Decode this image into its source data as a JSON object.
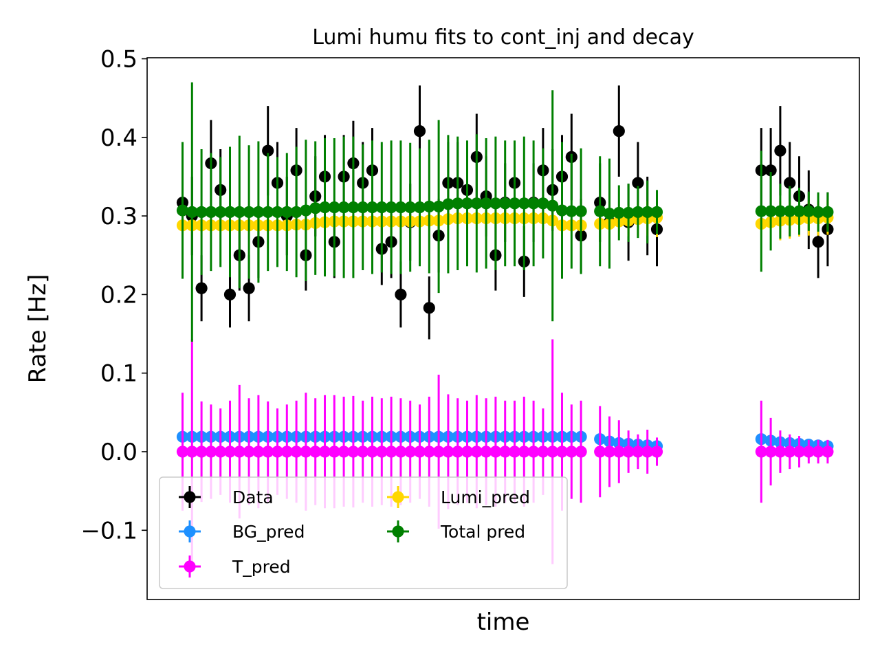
{
  "chart_data": {
    "type": "scatter",
    "title": "Lumi humu fits to cont_inj and decay",
    "xlabel": "time",
    "ylabel": "Rate [Hz]",
    "ylim": [
      -0.19,
      0.5
    ],
    "y_ticks": [
      0.5,
      0.4,
      0.3,
      0.2,
      0.1,
      0.0,
      -0.1
    ],
    "y_tick_labels": [
      "0.5",
      "0.4",
      "0.3",
      "0.2",
      "0.1",
      "0.0",
      "−0.1"
    ],
    "x_ticks_shown": false,
    "grid": false,
    "legend": {
      "placement": "lower-left",
      "columns": 2,
      "entries": [
        "Data",
        "BG_pred",
        "T_pred",
        "Lumi_pred",
        "Total pred"
      ]
    },
    "x": [
      1,
      2,
      3,
      4,
      5,
      6,
      7,
      8,
      9,
      10,
      11,
      12,
      13,
      14,
      15,
      16,
      17,
      18,
      19,
      20,
      21,
      22,
      23,
      24,
      25,
      26,
      27,
      28,
      29,
      30,
      31,
      32,
      33,
      34,
      35,
      36,
      37,
      38,
      39,
      40,
      41,
      42,
      43,
      44,
      45,
      46,
      47,
      48,
      49,
      50,
      51,
      52,
      53,
      54,
      55,
      56,
      57,
      58,
      59,
      60,
      61,
      62,
      63,
      64,
      65,
      66,
      67,
      68,
      69
    ],
    "series": [
      {
        "name": "Data",
        "color": "#000000",
        "values": [
          0.317,
          0.3,
          0.208,
          0.367,
          0.333,
          0.2,
          0.25,
          0.208,
          0.267,
          0.383,
          0.342,
          0.3,
          0.358,
          0.25,
          0.325,
          0.35,
          0.267,
          0.35,
          0.367,
          0.342,
          0.358,
          0.258,
          0.267,
          0.2,
          0.292,
          0.408,
          0.183,
          0.275,
          0.342,
          0.342,
          0.333,
          0.375,
          0.325,
          0.25,
          0.317,
          0.342,
          0.242,
          0.317,
          0.358,
          0.333,
          0.35,
          0.375,
          0.275,
          null,
          0.317,
          0.292,
          0.408,
          0.292,
          0.342,
          0.3,
          0.283,
          null,
          null,
          null,
          null,
          null,
          null,
          null,
          null,
          null,
          null,
          0.358,
          0.358,
          0.383,
          0.342,
          0.325,
          0.308,
          0.267,
          0.283
        ],
        "errors": [
          0.05,
          0.05,
          0.042,
          0.055,
          0.052,
          0.042,
          0.045,
          0.042,
          0.046,
          0.057,
          0.052,
          0.05,
          0.054,
          0.045,
          0.051,
          0.053,
          0.046,
          0.053,
          0.054,
          0.052,
          0.054,
          0.046,
          0.046,
          0.042,
          0.049,
          0.058,
          0.04,
          0.047,
          0.052,
          0.052,
          0.052,
          0.055,
          0.051,
          0.045,
          0.05,
          0.052,
          0.045,
          0.05,
          0.054,
          0.052,
          0.053,
          0.055,
          0.047,
          null,
          0.05,
          0.049,
          0.058,
          0.049,
          0.052,
          0.05,
          0.047,
          null,
          null,
          null,
          null,
          null,
          null,
          null,
          null,
          null,
          null,
          0.054,
          0.054,
          0.057,
          0.052,
          0.051,
          0.05,
          0.046,
          0.047
        ]
      },
      {
        "name": "BG_pred",
        "color": "#1e90ff",
        "values": [
          0.019,
          0.019,
          0.019,
          0.019,
          0.019,
          0.019,
          0.019,
          0.019,
          0.019,
          0.019,
          0.019,
          0.019,
          0.019,
          0.019,
          0.019,
          0.019,
          0.019,
          0.019,
          0.019,
          0.019,
          0.019,
          0.019,
          0.019,
          0.019,
          0.019,
          0.019,
          0.019,
          0.019,
          0.019,
          0.019,
          0.019,
          0.019,
          0.019,
          0.019,
          0.019,
          0.019,
          0.019,
          0.019,
          0.019,
          0.019,
          0.019,
          0.019,
          0.019,
          null,
          0.016,
          0.013,
          0.011,
          0.01,
          0.009,
          0.008,
          0.007,
          null,
          null,
          null,
          null,
          null,
          null,
          null,
          null,
          null,
          null,
          0.016,
          0.014,
          0.012,
          0.011,
          0.01,
          0.009,
          0.008,
          0.007
        ]
      },
      {
        "name": "T_pred",
        "color": "#ff00ff",
        "values": [
          0.0,
          0.0,
          0.0,
          0.0,
          0.0,
          0.0,
          0.0,
          0.0,
          0.0,
          0.0,
          0.0,
          0.0,
          0.0,
          0.0,
          0.0,
          0.0,
          0.0,
          0.0,
          0.0,
          0.0,
          0.0,
          0.0,
          0.0,
          0.0,
          0.0,
          0.0,
          0.0,
          0.0,
          0.0,
          0.0,
          0.0,
          0.0,
          0.0,
          0.0,
          0.0,
          0.0,
          0.0,
          0.0,
          0.0,
          0.0,
          0.0,
          0.0,
          0.0,
          null,
          0.0,
          0.0,
          0.0,
          0.0,
          0.0,
          0.0,
          0.0,
          null,
          null,
          null,
          null,
          null,
          null,
          null,
          null,
          null,
          null,
          0.0,
          0.0,
          0.0,
          0.0,
          0.0,
          0.0,
          0.0,
          0.0
        ],
        "errors": [
          0.075,
          0.143,
          0.064,
          0.06,
          0.055,
          0.065,
          0.085,
          0.068,
          0.072,
          0.064,
          0.055,
          0.06,
          0.065,
          0.075,
          0.068,
          0.072,
          0.072,
          0.07,
          0.071,
          0.065,
          0.07,
          0.068,
          0.07,
          0.068,
          0.065,
          0.06,
          0.07,
          0.098,
          0.073,
          0.068,
          0.065,
          0.072,
          0.068,
          0.07,
          0.065,
          0.065,
          0.07,
          0.065,
          0.055,
          0.143,
          0.075,
          0.06,
          0.065,
          null,
          0.058,
          0.045,
          0.04,
          0.027,
          0.022,
          0.028,
          0.018,
          null,
          null,
          null,
          null,
          null,
          null,
          null,
          null,
          null,
          null,
          0.065,
          0.043,
          0.027,
          0.022,
          0.02,
          0.015,
          0.015,
          0.015
        ]
      },
      {
        "name": "Lumi_pred",
        "color": "#ffd700",
        "values": [
          0.288,
          0.288,
          0.288,
          0.288,
          0.288,
          0.288,
          0.288,
          0.288,
          0.288,
          0.288,
          0.288,
          0.288,
          0.289,
          0.289,
          0.291,
          0.292,
          0.293,
          0.293,
          0.293,
          0.293,
          0.293,
          0.293,
          0.293,
          0.293,
          0.293,
          0.293,
          0.294,
          0.294,
          0.296,
          0.297,
          0.297,
          0.297,
          0.297,
          0.297,
          0.297,
          0.297,
          0.297,
          0.297,
          0.297,
          0.294,
          0.288,
          0.288,
          0.288,
          null,
          0.29,
          0.29,
          0.293,
          0.294,
          0.296,
          0.297,
          0.298,
          null,
          null,
          null,
          null,
          null,
          null,
          null,
          null,
          null,
          null,
          0.29,
          0.292,
          0.294,
          0.295,
          0.296,
          0.297,
          0.297,
          0.298
        ],
        "errors": [
          0.003,
          0.003,
          0.003,
          0.003,
          0.003,
          0.003,
          0.003,
          0.003,
          0.003,
          0.003,
          0.003,
          0.003,
          0.003,
          0.003,
          0.003,
          0.003,
          0.003,
          0.003,
          0.003,
          0.003,
          0.003,
          0.003,
          0.003,
          0.003,
          0.003,
          0.003,
          0.003,
          0.003,
          0.003,
          0.003,
          0.003,
          0.003,
          0.003,
          0.003,
          0.003,
          0.003,
          0.003,
          0.003,
          0.003,
          0.003,
          0.003,
          0.003,
          0.003,
          null,
          0.005,
          0.005,
          0.006,
          0.02,
          0.021,
          0.022,
          0.025,
          null,
          null,
          null,
          null,
          null,
          null,
          null,
          null,
          null,
          null,
          0.005,
          0.006,
          0.025,
          0.024,
          0.022,
          0.022,
          0.022,
          0.022
        ]
      },
      {
        "name": "Total pred",
        "color": "#008000",
        "values": [
          0.307,
          0.305,
          0.305,
          0.305,
          0.305,
          0.305,
          0.305,
          0.305,
          0.305,
          0.305,
          0.305,
          0.305,
          0.305,
          0.307,
          0.31,
          0.311,
          0.311,
          0.311,
          0.311,
          0.311,
          0.311,
          0.311,
          0.311,
          0.311,
          0.311,
          0.311,
          0.312,
          0.312,
          0.315,
          0.316,
          0.316,
          0.316,
          0.316,
          0.316,
          0.316,
          0.316,
          0.316,
          0.316,
          0.316,
          0.313,
          0.307,
          0.306,
          0.306,
          null,
          0.306,
          0.303,
          0.304,
          0.304,
          0.305,
          0.305,
          0.305,
          null,
          null,
          null,
          null,
          null,
          null,
          null,
          null,
          null,
          null,
          0.306,
          0.306,
          0.306,
          0.306,
          0.306,
          0.306,
          0.305,
          0.305
        ],
        "errors": [
          0.087,
          0.165,
          0.08,
          0.075,
          0.07,
          0.083,
          0.097,
          0.085,
          0.09,
          0.075,
          0.07,
          0.075,
          0.083,
          0.09,
          0.085,
          0.088,
          0.088,
          0.09,
          0.09,
          0.08,
          0.085,
          0.083,
          0.085,
          0.085,
          0.082,
          0.075,
          0.085,
          0.11,
          0.088,
          0.085,
          0.08,
          0.088,
          0.083,
          0.085,
          0.08,
          0.08,
          0.085,
          0.08,
          0.07,
          0.147,
          0.087,
          0.073,
          0.08,
          null,
          0.07,
          0.07,
          0.035,
          0.037,
          0.033,
          0.04,
          0.028,
          null,
          null,
          null,
          null,
          null,
          null,
          null,
          null,
          null,
          null,
          0.077,
          0.05,
          0.035,
          0.032,
          0.03,
          0.025,
          0.025,
          0.025
        ]
      }
    ]
  }
}
